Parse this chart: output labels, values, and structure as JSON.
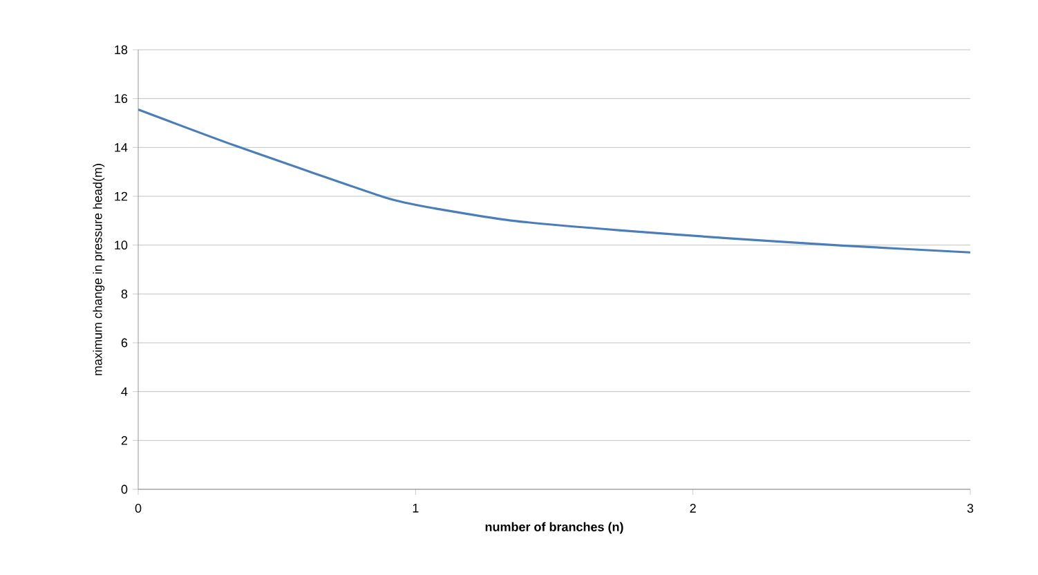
{
  "chart_data": {
    "type": "line",
    "xlabel": "number of branches (n)",
    "ylabel": "maximum change in pressure head(m)",
    "x": [
      0,
      0.35,
      0.89,
      1.07,
      1.35,
      1.74,
      2.14,
      2.54,
      3
    ],
    "series": [
      {
        "color": "#4a7ebb",
        "values": [
          15.55,
          14.07,
          11.95,
          11.5,
          11.0,
          10.6,
          10.27,
          9.98,
          9.7
        ]
      }
    ],
    "xlim": [
      0,
      3
    ],
    "xticks": [
      0,
      1,
      2,
      3
    ],
    "ylim": [
      0,
      18
    ],
    "yticks": [
      0,
      2,
      4,
      6,
      8,
      10,
      12,
      14,
      16,
      18
    ],
    "grid": "y",
    "marker": "none",
    "line_style": "solid"
  }
}
